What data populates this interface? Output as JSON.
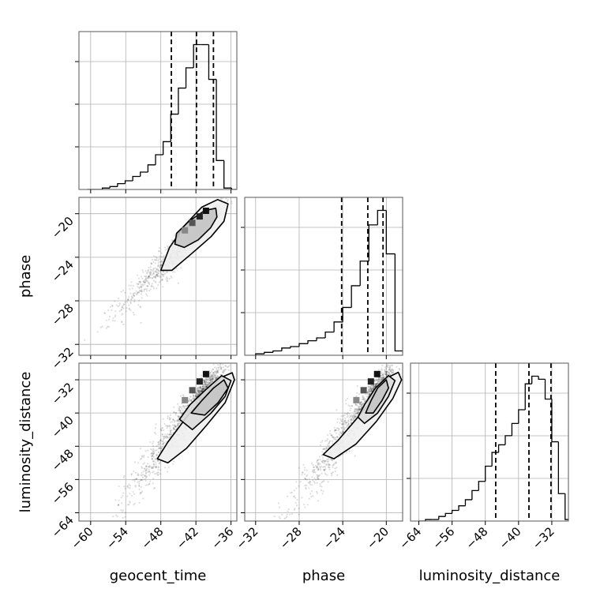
{
  "chart_data": {
    "type": "corner",
    "parameters": [
      "geocent_time",
      "phase",
      "luminosity_distance"
    ],
    "axis_labels": {
      "geocent_time": "geocent_time",
      "phase": "phase",
      "luminosity_distance": "luminosity_distance"
    },
    "ranges": {
      "geocent_time": [
        -62,
        -35
      ],
      "phase": [
        -33,
        -18.5
      ],
      "luminosity_distance": [
        -66,
        -28
      ]
    },
    "ticks": {
      "geocent_time": [
        -60,
        -54,
        -48,
        -42,
        -36
      ],
      "phase": [
        -32,
        -28,
        -24,
        -20
      ],
      "luminosity_distance": [
        -64,
        -56,
        -48,
        -40,
        -32
      ]
    },
    "tick_labels": {
      "geocent_time": [
        "−60",
        "−54",
        "−48",
        "−42",
        "−36"
      ],
      "phase": [
        "−32",
        "−28",
        "−24",
        "−20"
      ],
      "luminosity_distance": [
        "−64",
        "−56",
        "−48",
        "−40",
        "−32"
      ]
    },
    "quantiles": {
      "geocent_time": [
        -46.2,
        -41.9,
        -39.0
      ],
      "phase": [
        -24.1,
        -21.7,
        -20.3
      ],
      "luminosity_distance": [
        -45.5,
        -37.5,
        -32.2
      ]
    },
    "histograms": {
      "geocent_time": {
        "edges": [
          -60.6,
          -59.3,
          -58.0,
          -56.7,
          -55.4,
          -54.1,
          -52.8,
          -51.5,
          -50.2,
          -48.9,
          -47.6,
          -46.3,
          -45.0,
          -43.7,
          -42.4,
          -41.1,
          -39.8,
          -38.5,
          -37.2,
          -35.9
        ],
        "counts": [
          0,
          0,
          1,
          2,
          4,
          6,
          9,
          12,
          17,
          24,
          33,
          52,
          70,
          84,
          100,
          100,
          76,
          20,
          1
        ]
      },
      "phase": {
        "edges": [
          -32.0,
          -31.2,
          -30.4,
          -29.6,
          -28.8,
          -28.0,
          -27.2,
          -26.4,
          -25.6,
          -24.8,
          -24.0,
          -23.2,
          -22.4,
          -21.6,
          -20.8,
          -20.0,
          -19.2,
          -18.4
        ],
        "counts": [
          1,
          2,
          3,
          5,
          6,
          8,
          10,
          12,
          16,
          23,
          33,
          48,
          65,
          90,
          100,
          70,
          3
        ]
      },
      "luminosity_distance": {
        "edges": [
          -64.0,
          -62.4,
          -60.8,
          -59.2,
          -57.6,
          -56.0,
          -54.4,
          -52.8,
          -51.2,
          -49.6,
          -48.0,
          -46.4,
          -44.8,
          -43.2,
          -41.6,
          -40.0,
          -38.4,
          -36.8,
          -35.2,
          -33.6,
          -32.0,
          -30.4,
          -28.8,
          -27.2
        ],
        "counts": [
          0,
          1,
          1,
          3,
          5,
          7,
          10,
          14,
          20,
          26,
          36,
          45,
          50,
          56,
          64,
          73,
          90,
          95,
          93,
          80,
          52,
          18,
          1
        ]
      }
    },
    "contours": {
      "phase|geocent_time": {
        "inner": [
          [
            -45.3,
            -21.8
          ],
          [
            -43.2,
            -20.7
          ],
          [
            -40.5,
            -19.7
          ],
          [
            -38.6,
            -19.5
          ],
          [
            -38.4,
            -20.3
          ],
          [
            -39.5,
            -21.3
          ],
          [
            -41.6,
            -22.4
          ],
          [
            -44.0,
            -23.1
          ],
          [
            -45.6,
            -22.8
          ]
        ],
        "outer": [
          [
            -48.0,
            -25.2
          ],
          [
            -46.5,
            -23.1
          ],
          [
            -43.8,
            -21.0
          ],
          [
            -41.0,
            -19.4
          ],
          [
            -38.3,
            -18.7
          ],
          [
            -36.5,
            -19.1
          ],
          [
            -37.2,
            -20.7
          ],
          [
            -39.4,
            -22.1
          ],
          [
            -42.8,
            -23.7
          ],
          [
            -46.1,
            -25.2
          ]
        ]
      },
      "luminosity_distance|geocent_time": {
        "inner": [
          [
            -42.8,
            -40.0
          ],
          [
            -41.0,
            -37.0
          ],
          [
            -39.0,
            -34.0
          ],
          [
            -37.2,
            -32.0
          ],
          [
            -36.5,
            -34.0
          ],
          [
            -38.2,
            -37.5
          ],
          [
            -40.5,
            -40.5
          ]
        ],
        "middle": [
          [
            -44.8,
            -41.5
          ],
          [
            -43.0,
            -38.0
          ],
          [
            -40.4,
            -34.5
          ],
          [
            -37.6,
            -31.0
          ],
          [
            -36.0,
            -32.2
          ],
          [
            -37.0,
            -36.0
          ],
          [
            -39.4,
            -40.0
          ],
          [
            -42.6,
            -44.0
          ]
        ],
        "outer": [
          [
            -48.6,
            -51.0
          ],
          [
            -46.8,
            -47.0
          ],
          [
            -43.6,
            -41.0
          ],
          [
            -40.4,
            -36.0
          ],
          [
            -37.8,
            -31.5
          ],
          [
            -35.8,
            -30.3
          ],
          [
            -35.4,
            -32.0
          ],
          [
            -37.0,
            -37.5
          ],
          [
            -40.2,
            -43.0
          ],
          [
            -43.6,
            -48.5
          ],
          [
            -46.8,
            -52.0
          ]
        ]
      },
      "luminosity_distance|phase": {
        "inner": [
          [
            -21.9,
            -40.0
          ],
          [
            -21.4,
            -37.0
          ],
          [
            -20.8,
            -34.0
          ],
          [
            -20.0,
            -32.0
          ],
          [
            -19.8,
            -34.0
          ],
          [
            -20.4,
            -37.0
          ],
          [
            -21.2,
            -40.0
          ]
        ],
        "middle": [
          [
            -22.6,
            -41.0
          ],
          [
            -22.0,
            -38.0
          ],
          [
            -21.0,
            -34.0
          ],
          [
            -19.8,
            -31.0
          ],
          [
            -19.2,
            -32.2
          ],
          [
            -19.8,
            -36.0
          ],
          [
            -20.8,
            -40.0
          ],
          [
            -22.0,
            -42.5
          ]
        ],
        "outer": [
          [
            -25.8,
            -50.0
          ],
          [
            -24.4,
            -46.5
          ],
          [
            -22.6,
            -41.0
          ],
          [
            -21.0,
            -36.0
          ],
          [
            -19.9,
            -31.5
          ],
          [
            -18.9,
            -30.2
          ],
          [
            -18.6,
            -32.0
          ],
          [
            -19.4,
            -36.5
          ],
          [
            -20.9,
            -42.0
          ],
          [
            -22.8,
            -47.5
          ],
          [
            -24.8,
            -51.0
          ]
        ]
      }
    },
    "grid": true
  }
}
